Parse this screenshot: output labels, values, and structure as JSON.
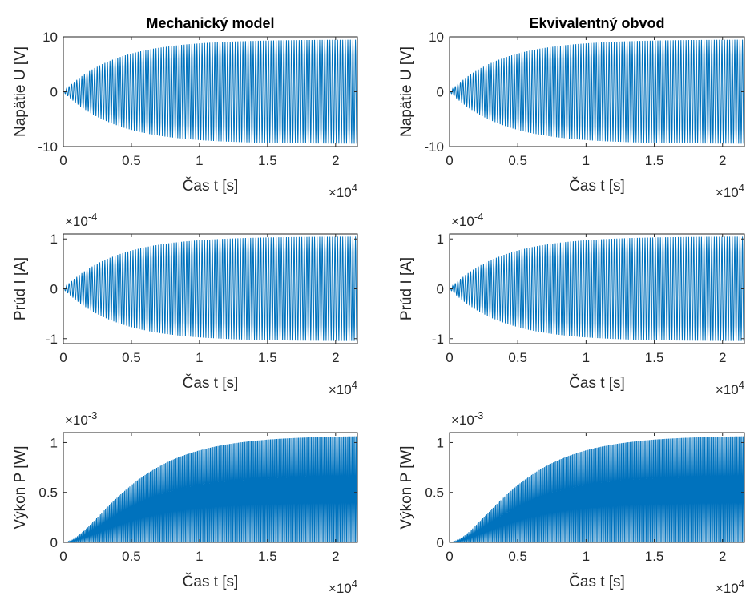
{
  "chart_data": [
    {
      "type": "line",
      "title": "Mechanický model",
      "xlabel": "Čas t [s]",
      "ylabel": "Napätie U [V]",
      "xlim": [
        0,
        21600
      ],
      "ylim": [
        -10,
        10
      ],
      "xticks": [
        "0",
        "0.5",
        "1",
        "1.5",
        "2"
      ],
      "x_exponent": "×10^4",
      "yticks": [
        "-10",
        "0",
        "10"
      ],
      "y_exponent": "",
      "signal": {
        "kind": "oscillation",
        "amplitude": 9.5,
        "rise_time": 3800,
        "cycles": 115
      },
      "color": "#0072BD"
    },
    {
      "type": "line",
      "title": "Ekvivalentný obvod",
      "xlabel": "Čas t [s]",
      "ylabel": "Napätie U [V]",
      "xlim": [
        0,
        21600
      ],
      "ylim": [
        -10,
        10
      ],
      "xticks": [
        "0",
        "0.5",
        "1",
        "1.5",
        "2"
      ],
      "x_exponent": "×10^4",
      "yticks": [
        "-10",
        "0",
        "10"
      ],
      "y_exponent": "",
      "signal": {
        "kind": "oscillation",
        "amplitude": 9.5,
        "rise_time": 3800,
        "cycles": 115
      },
      "color": "#0072BD"
    },
    {
      "type": "line",
      "title": "",
      "xlabel": "Čas t [s]",
      "ylabel": "Prúd I [A]",
      "xlim": [
        0,
        21600
      ],
      "ylim": [
        -1.1,
        1.1
      ],
      "xticks": [
        "0",
        "0.5",
        "1",
        "1.5",
        "2"
      ],
      "x_exponent": "×10^4",
      "yticks": [
        "-1",
        "0",
        "1"
      ],
      "y_exponent": "×10^-4",
      "signal": {
        "kind": "oscillation",
        "amplitude": 1.05,
        "rise_time": 3800,
        "cycles": 115
      },
      "color": "#0072BD"
    },
    {
      "type": "line",
      "title": "",
      "xlabel": "Čas t [s]",
      "ylabel": "Prúd I [A]",
      "xlim": [
        0,
        21600
      ],
      "ylim": [
        -1.1,
        1.1
      ],
      "xticks": [
        "0",
        "0.5",
        "1",
        "1.5",
        "2"
      ],
      "x_exponent": "×10^4",
      "yticks": [
        "-1",
        "0",
        "1"
      ],
      "y_exponent": "×10^-4",
      "signal": {
        "kind": "oscillation",
        "amplitude": 1.05,
        "rise_time": 3800,
        "cycles": 115
      },
      "color": "#0072BD"
    },
    {
      "type": "area",
      "title": "",
      "xlabel": "Čas t [s]",
      "ylabel": "Výkon P [W]",
      "xlim": [
        0,
        21600
      ],
      "ylim": [
        0,
        1.1
      ],
      "xticks": [
        "0",
        "0.5",
        "1",
        "1.5",
        "2"
      ],
      "x_exponent": "×10^4",
      "yticks": [
        "0",
        "0.5",
        "1"
      ],
      "y_exponent": "×10^-3",
      "signal": {
        "kind": "power",
        "amplitude": 1.07,
        "rise_time": 3800,
        "cycles": 115
      },
      "color": "#0072BD"
    },
    {
      "type": "area",
      "title": "",
      "xlabel": "Čas t [s]",
      "ylabel": "Výkon P [W]",
      "xlim": [
        0,
        21600
      ],
      "ylim": [
        0,
        1.1
      ],
      "xticks": [
        "0",
        "0.5",
        "1",
        "1.5",
        "2"
      ],
      "x_exponent": "×10^4",
      "yticks": [
        "0",
        "0.5",
        "1"
      ],
      "y_exponent": "×10^-3",
      "signal": {
        "kind": "power",
        "amplitude": 1.07,
        "rise_time": 3800,
        "cycles": 115
      },
      "color": "#0072BD"
    }
  ]
}
